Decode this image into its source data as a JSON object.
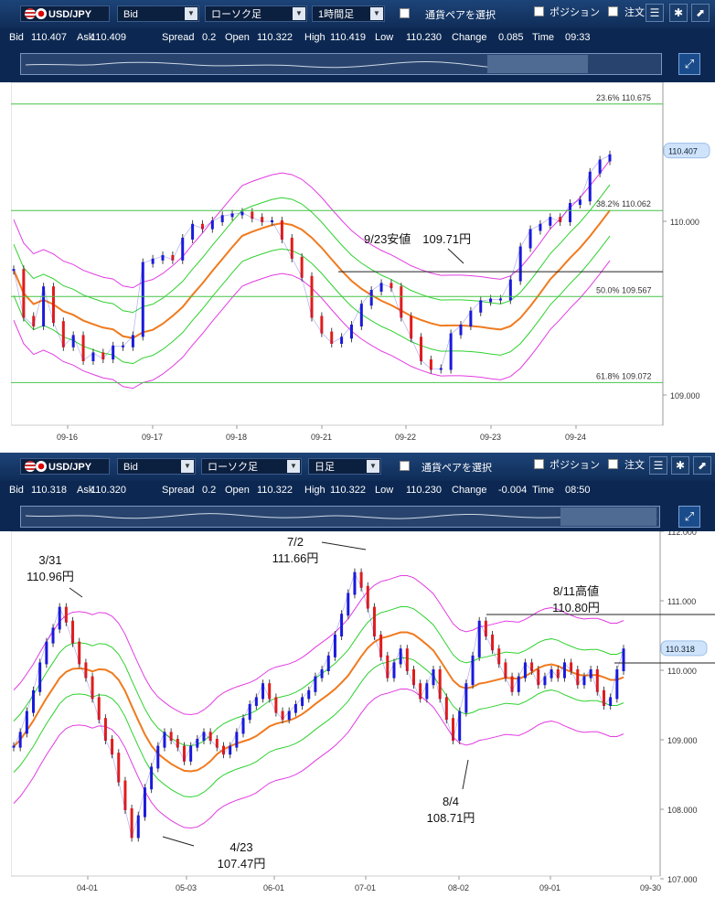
{
  "panels": [
    {
      "toolbar": {
        "symbol": "USD/JPY",
        "price_type": "Bid",
        "chart_kind": "ローソク足",
        "interval": "1時間足",
        "pair_select": "通貨ペアを選択",
        "position": "ポジション",
        "order": "注文"
      },
      "info": [
        [
          "Bid",
          "110.407"
        ],
        [
          "Ask",
          "110.409"
        ],
        [
          "Spread",
          "0.2"
        ],
        [
          "Open",
          "110.322"
        ],
        [
          "High",
          "110.419"
        ],
        [
          "Low",
          "110.230"
        ],
        [
          "Change",
          "0.085"
        ],
        [
          "Time",
          "09:33"
        ]
      ],
      "chart_data": {
        "type": "candlestick",
        "y_ticks": [
          "110.000",
          "109.000"
        ],
        "x_ticks": [
          "09-16",
          "09-17",
          "09-18",
          "09-21",
          "09-22",
          "09-23",
          "09-24"
        ],
        "current_price": "110.407",
        "fib_levels": [
          {
            "label": "23.6%",
            "value": "110.675"
          },
          {
            "label": "38.2%",
            "value": "110.062"
          },
          {
            "label": "50.0%",
            "value": "109.567"
          },
          {
            "label": "61.8%",
            "value": "109.072"
          }
        ],
        "annotations": [
          {
            "text": "9/23安値　109.71円"
          }
        ],
        "close_path": [
          109.72,
          109.45,
          109.4,
          109.62,
          109.42,
          109.28,
          109.34,
          109.2,
          109.24,
          109.21,
          109.28,
          109.28,
          109.34,
          109.76,
          109.78,
          109.8,
          109.78,
          109.9,
          109.98,
          109.96,
          110.0,
          110.03,
          110.04,
          110.05,
          110.02,
          110.0,
          110.0,
          109.9,
          109.79,
          109.68,
          109.45,
          109.36,
          109.3,
          109.33,
          109.4,
          109.52,
          109.6,
          109.64,
          109.62,
          109.45,
          109.33,
          109.2,
          109.15,
          109.15,
          109.35,
          109.4,
          109.48,
          109.54,
          109.55,
          109.55,
          109.66,
          109.85,
          109.95,
          109.98,
          110.02,
          110.0,
          110.1,
          110.12,
          110.28,
          110.35,
          110.38
        ]
      }
    },
    {
      "toolbar": {
        "symbol": "USD/JPY",
        "price_type": "Bid",
        "chart_kind": "ローソク足",
        "interval": "日足",
        "pair_select": "通貨ペアを選択",
        "position": "ポジション",
        "order": "注文"
      },
      "info": [
        [
          "Bid",
          "110.318"
        ],
        [
          "Ask",
          "110.320"
        ],
        [
          "Spread",
          "0.2"
        ],
        [
          "Open",
          "110.322"
        ],
        [
          "High",
          "110.322"
        ],
        [
          "Low",
          "110.230"
        ],
        [
          "Change",
          "-0.004"
        ],
        [
          "Time",
          "08:50"
        ]
      ],
      "chart_data": {
        "type": "candlestick",
        "y_ticks": [
          "112.000",
          "111.000",
          "110.000",
          "109.000",
          "108.000",
          "107.000"
        ],
        "x_ticks": [
          "04-01",
          "05-03",
          "06-01",
          "07-01",
          "08-02",
          "09-01",
          "09-30"
        ],
        "current_price": "110.318",
        "annotations": [
          {
            "text1": "3/31",
            "text2": "110.96円"
          },
          {
            "text1": "7/2",
            "text2": "111.66円"
          },
          {
            "text1": "8/11高値",
            "text2": "110.80円"
          },
          {
            "text1": "4/23",
            "text2": "107.47円"
          },
          {
            "text1": "8/4",
            "text2": "108.71円"
          }
        ],
        "close_path": [
          108.9,
          109.1,
          109.4,
          109.7,
          110.1,
          110.4,
          110.6,
          110.9,
          110.7,
          110.4,
          110.1,
          109.9,
          109.6,
          109.3,
          109.0,
          108.8,
          108.4,
          108.0,
          107.6,
          107.9,
          108.3,
          108.6,
          108.9,
          109.1,
          109.0,
          108.9,
          108.7,
          108.9,
          109.0,
          109.1,
          109.0,
          108.9,
          108.8,
          108.9,
          109.1,
          109.3,
          109.5,
          109.6,
          109.8,
          109.6,
          109.4,
          109.3,
          109.4,
          109.5,
          109.6,
          109.7,
          109.9,
          110.0,
          110.2,
          110.5,
          110.8,
          111.1,
          111.4,
          111.2,
          110.9,
          110.5,
          110.2,
          109.9,
          110.1,
          110.3,
          110.0,
          109.8,
          109.6,
          109.8,
          110.0,
          109.6,
          109.3,
          109.0,
          109.4,
          109.8,
          110.2,
          110.7,
          110.5,
          110.3,
          110.1,
          109.9,
          109.7,
          109.9,
          110.1,
          110.0,
          109.8,
          109.9,
          110.0,
          109.9,
          110.1,
          110.0,
          109.8,
          109.9,
          110.0,
          109.7,
          109.5,
          109.6,
          110.0,
          110.3
        ]
      }
    }
  ]
}
